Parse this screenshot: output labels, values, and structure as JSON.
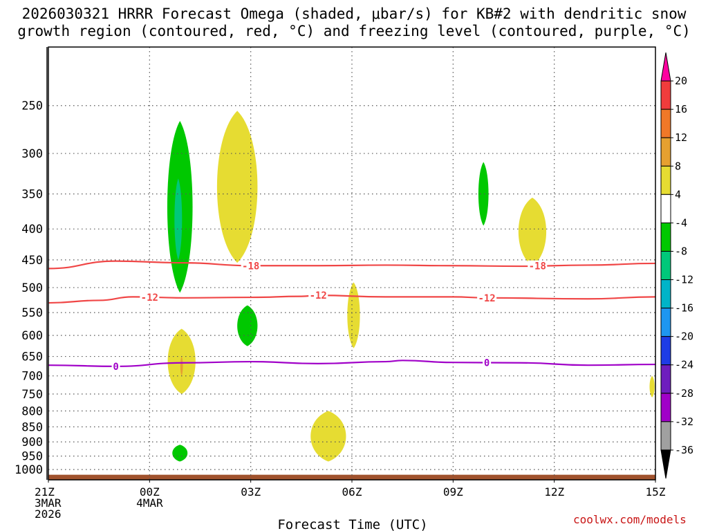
{
  "title_lines": [
    "2026030321 HRRR Forecast Omega (shaded, μbar/s) for KB#2 with dendritic snow",
    "growth region (contoured, red, °C) and freezing level (contoured, purple, °C)"
  ],
  "credit": "coolwx.com/models",
  "chart_data": {
    "type": "heatmap",
    "xlabel": "Forecast Time (UTC)",
    "ylabel": "",
    "x_ticks": [
      {
        "hour": 0,
        "lines": [
          "21Z",
          "3MAR",
          "2026"
        ]
      },
      {
        "hour": 3,
        "lines": [
          "00Z",
          "4MAR"
        ]
      },
      {
        "hour": 6,
        "lines": [
          "03Z"
        ]
      },
      {
        "hour": 9,
        "lines": [
          "06Z"
        ]
      },
      {
        "hour": 12,
        "lines": [
          "09Z"
        ]
      },
      {
        "hour": 15,
        "lines": [
          "12Z"
        ]
      },
      {
        "hour": 18,
        "lines": [
          "15Z"
        ]
      }
    ],
    "xlim_hours": [
      0,
      18
    ],
    "y_axis": "pressure (mb), log scale, reversed",
    "ylim_mb": [
      1040,
      200
    ],
    "y_ticks": [
      250,
      300,
      350,
      400,
      450,
      500,
      550,
      600,
      650,
      700,
      750,
      800,
      850,
      900,
      950,
      1000
    ],
    "grid": true,
    "colorbar": {
      "position": "right",
      "labels": [
        20,
        16,
        12,
        8,
        4,
        -4,
        -8,
        -12,
        -16,
        -20,
        -24,
        -28,
        -32,
        -36
      ],
      "colors": [
        "#ff00a0",
        "#f03c3c",
        "#f07828",
        "#e6a030",
        "#e6dc32",
        "#ffffff",
        "#00c800",
        "#00c87a",
        "#00b4c8",
        "#1e96f0",
        "#1e3ce6",
        "#6e1ebe",
        "#a000c8",
        "#a0a0a0",
        "#000000"
      ]
    },
    "omega_features": [
      {
        "range": "-8 to -4",
        "color": "#00c800",
        "hours": [
          3.4,
          4.4
        ],
        "pressure_mb": [
          265,
          510
        ]
      },
      {
        "range": "-12 to -8",
        "color": "#00c87a",
        "hours": [
          3.7,
          4.0
        ],
        "pressure_mb": [
          330,
          450
        ]
      },
      {
        "range": "4 to 8",
        "color": "#e6dc32",
        "hours": [
          4.8,
          6.4
        ],
        "pressure_mb": [
          255,
          455
        ]
      },
      {
        "range": "-8 to -4",
        "color": "#00c800",
        "hours": [
          5.5,
          6.3
        ],
        "pressure_mb": [
          535,
          625
        ]
      },
      {
        "range": "4 to 8",
        "color": "#e6dc32",
        "hours": [
          3.4,
          4.5
        ],
        "pressure_mb": [
          585,
          750
        ]
      },
      {
        "range": "8 to 12",
        "color": "#e6a030",
        "hours": [
          3.9,
          4.0
        ],
        "pressure_mb": [
          650,
          700
        ]
      },
      {
        "range": "-8 to -4",
        "color": "#00c800",
        "hours": [
          3.6,
          4.2
        ],
        "pressure_mb": [
          910,
          970
        ]
      },
      {
        "range": "4 to 8",
        "color": "#e6dc32",
        "hours": [
          7.6,
          9.0
        ],
        "pressure_mb": [
          800,
          970
        ]
      },
      {
        "range": "4 to 8",
        "color": "#e6dc32",
        "hours": [
          8.8,
          9.3
        ],
        "pressure_mb": [
          490,
          630
        ]
      },
      {
        "range": "-8 to -4",
        "color": "#00c800",
        "hours": [
          12.7,
          13.1
        ],
        "pressure_mb": [
          310,
          395
        ]
      },
      {
        "range": "4 to 8",
        "color": "#e6dc32",
        "hours": [
          13.8,
          14.9
        ],
        "pressure_mb": [
          355,
          460
        ]
      },
      {
        "range": "4 to 8",
        "color": "#e6dc32",
        "hours": [
          17.8,
          18.0
        ],
        "pressure_mb": [
          700,
          760
        ]
      }
    ],
    "contours": [
      {
        "label": "-18",
        "color": "#f04646",
        "points": [
          [
            0,
            465
          ],
          [
            2,
            452
          ],
          [
            4,
            455
          ],
          [
            6,
            460
          ],
          [
            8,
            460
          ],
          [
            10,
            459
          ],
          [
            12,
            460
          ],
          [
            14,
            461
          ],
          [
            16,
            459
          ],
          [
            18,
            456
          ]
        ],
        "label_hours": [
          6.0,
          14.5
        ]
      },
      {
        "label": "-12",
        "color": "#f04646",
        "points": [
          [
            0,
            530
          ],
          [
            1.5,
            525
          ],
          [
            2.5,
            518
          ],
          [
            4,
            520
          ],
          [
            6,
            519
          ],
          [
            7.5,
            517
          ],
          [
            8,
            515
          ],
          [
            10,
            518
          ],
          [
            12,
            518
          ],
          [
            13,
            520
          ],
          [
            16,
            522
          ],
          [
            18,
            518
          ]
        ],
        "label_hours": [
          3.0,
          8.0,
          13.0
        ]
      },
      {
        "label": "0",
        "color": "#a000c8",
        "points": [
          [
            0,
            672
          ],
          [
            2,
            675
          ],
          [
            4,
            666
          ],
          [
            6,
            663
          ],
          [
            8,
            668
          ],
          [
            10,
            663
          ],
          [
            10.5,
            660
          ],
          [
            12,
            665
          ],
          [
            14,
            666
          ],
          [
            16,
            672
          ],
          [
            18,
            670
          ]
        ],
        "label_hours": [
          2.0,
          13.0
        ]
      }
    ],
    "surface_band": {
      "color": "#a0522d",
      "pressure_mb": [
        1020,
        1040
      ]
    }
  }
}
